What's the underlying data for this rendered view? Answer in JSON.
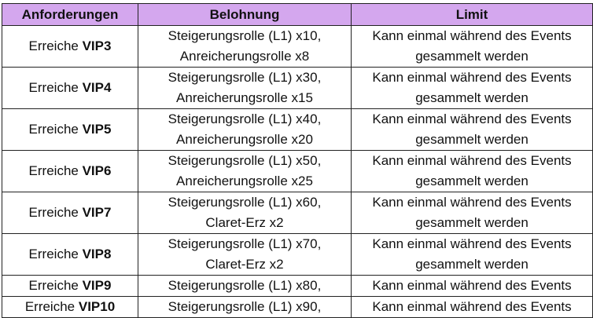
{
  "table": {
    "headers": [
      "Anforderungen",
      "Belohnung",
      "Limit"
    ],
    "rows": [
      {
        "req_prefix": "Erreiche",
        "req_level": "VIP3",
        "reward_l1": "Steigerungsrolle (L1) x10,",
        "reward_l2": "Anreicherungsrolle x8",
        "limit_l1": "Kann einmal während des Events",
        "limit_l2": "gesammelt werden"
      },
      {
        "req_prefix": "Erreiche",
        "req_level": "VIP4",
        "reward_l1": "Steigerungsrolle (L1) x30,",
        "reward_l2": "Anreicherungsrolle x15",
        "limit_l1": "Kann einmal während des Events",
        "limit_l2": "gesammelt werden"
      },
      {
        "req_prefix": "Erreiche",
        "req_level": "VIP5",
        "reward_l1": "Steigerungsrolle (L1) x40,",
        "reward_l2": "Anreicherungsrolle x20",
        "limit_l1": "Kann einmal während des Events",
        "limit_l2": "gesammelt werden"
      },
      {
        "req_prefix": "Erreiche",
        "req_level": "VIP6",
        "reward_l1": "Steigerungsrolle (L1) x50,",
        "reward_l2": "Anreicherungsrolle x25",
        "limit_l1": "Kann einmal während des Events",
        "limit_l2": "gesammelt werden"
      },
      {
        "req_prefix": "Erreiche",
        "req_level": "VIP7",
        "reward_l1": "Steigerungsrolle (L1) x60,",
        "reward_l2": "Claret-Erz x2",
        "limit_l1": "Kann einmal während des Events",
        "limit_l2": "gesammelt werden"
      },
      {
        "req_prefix": "Erreiche",
        "req_level": "VIP8",
        "reward_l1": "Steigerungsrolle (L1) x70,",
        "reward_l2": "Claret-Erz x2",
        "limit_l1": "Kann einmal während des Events",
        "limit_l2": "gesammelt werden"
      },
      {
        "req_prefix": "Erreiche",
        "req_level": "VIP9",
        "reward_l1": "Steigerungsrolle (L1) x80,",
        "reward_l2": "",
        "limit_l1": "Kann einmal während des Events",
        "limit_l2": ""
      },
      {
        "req_prefix": "Erreiche",
        "req_level": "VIP10",
        "reward_l1": "Steigerungsrolle (L1) x90,",
        "reward_l2": "",
        "limit_l1": "Kann einmal während des Events",
        "limit_l2": ""
      }
    ]
  }
}
